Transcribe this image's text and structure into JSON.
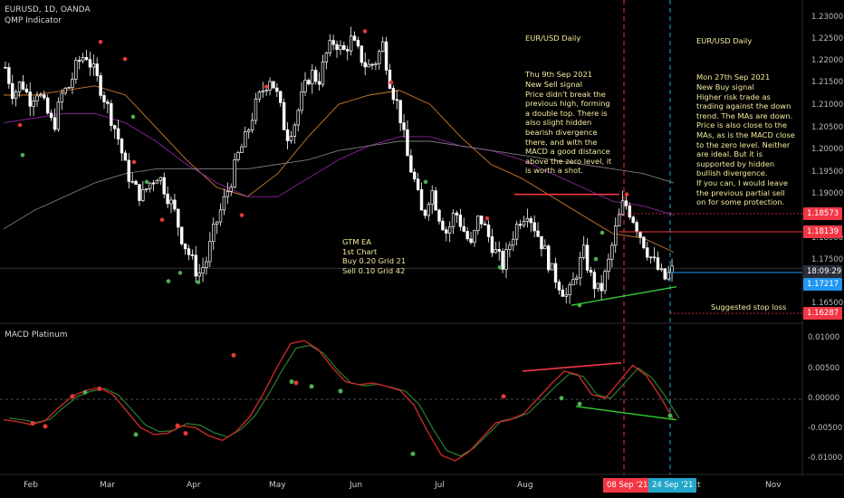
{
  "header": {
    "symbol_line": "EURUSD, 1D, OANDA",
    "indicator": "QMP Indicator"
  },
  "macd_panel_title": "MACD Platinum",
  "notes": [
    {
      "title": "EUR/USD Daily",
      "body": "Thu 9th Sep 2021\nNew Sell signal\nPrice didn't break the previous high, forming a double top. There is also slight hidden bearish divergence there, and with the MACD a good distance above the zero level, it is worth a shot."
    },
    {
      "title": "EUR/USD Daily",
      "body": "Mon 27th Sep 2021\nNew Buy signal\nHigher risk trade as trading against the down trend. The MAs are down. Price is also close to the MAs, as is the MACD close to the zero level. Neither are ideal. But it is supported by hidden bullish divergence.\nIf you can, I would leave the previous partial sell on for some protection."
    }
  ],
  "ea_note": "GTM EA\n1st Chart\nBuy 0.20 Grid 21\nSell 0.10 Grid 42",
  "stop_note": "Suggested stop loss",
  "price_axis": [
    "1.23000",
    "1.22500",
    "1.22000",
    "1.21500",
    "1.21000",
    "1.20500",
    "1.20000",
    "1.19500",
    "1.19000",
    "1.18500",
    "1.18000",
    "1.17500",
    "1.17000",
    "1.16500"
  ],
  "macd_axis": [
    "0.01000",
    "0.00500",
    "0.00000",
    "-0.00500",
    "-0.01000"
  ],
  "price_tags": [
    {
      "label": "1.18573",
      "color": "#f23645"
    },
    {
      "label": "1.18139",
      "color": "#f23645"
    },
    {
      "label": "18:09:29",
      "color": "#2a2e39"
    },
    {
      "label": "1.17217",
      "color": "#2196f3"
    },
    {
      "label": "1.16287",
      "color": "#f23645"
    }
  ],
  "x_axis": [
    "Feb",
    "Mar",
    "Apr",
    "May",
    "Jun",
    "Jul",
    "Aug",
    "Oct",
    "Nov"
  ],
  "date_tags": [
    {
      "label": "08 Sep '21",
      "color": "#f23645"
    },
    {
      "label": "24 Sep '21",
      "color": "#22a6c9"
    }
  ],
  "chart_data": {
    "type": "candlestick",
    "symbol": "EURUSD",
    "timeframe": "1D",
    "x_range": [
      "2021-01-18",
      "2021-11-15"
    ],
    "ylim": [
      1.163,
      1.231
    ],
    "close_path": [
      1.218,
      1.212,
      1.215,
      1.211,
      1.213,
      1.209,
      1.205,
      1.212,
      1.214,
      1.219,
      1.221,
      1.217,
      1.213,
      1.208,
      1.203,
      1.196,
      1.192,
      1.19,
      1.193,
      1.195,
      1.191,
      1.187,
      1.181,
      1.177,
      1.173,
      1.176,
      1.183,
      1.188,
      1.193,
      1.199,
      1.203,
      1.209,
      1.213,
      1.216,
      1.211,
      1.203,
      1.206,
      1.212,
      1.217,
      1.215,
      1.221,
      1.224,
      1.221,
      1.224,
      1.221,
      1.218,
      1.219,
      1.223,
      1.214,
      1.209,
      1.199,
      1.193,
      1.185,
      1.192,
      1.186,
      1.182,
      1.187,
      1.183,
      1.179,
      1.186,
      1.182,
      1.178,
      1.175,
      1.181,
      1.185,
      1.187,
      1.183,
      1.179,
      1.174,
      1.171,
      1.168,
      1.173,
      1.178,
      1.172,
      1.169,
      1.175,
      1.183,
      1.189,
      1.186,
      1.182,
      1.178,
      1.175,
      1.172,
      1.174
    ],
    "ma_series": [
      {
        "color": "#e68a2e",
        "values": [
          1.212,
          1.212,
          1.213,
          1.214,
          1.212,
          1.205,
          1.198,
          1.192,
          1.19,
          1.195,
          1.203,
          1.21,
          1.212,
          1.213,
          1.21,
          1.203,
          1.197,
          1.194,
          1.19,
          1.186,
          1.182,
          1.181,
          1.178
        ]
      },
      {
        "color": "#9c27b0",
        "values": [
          1.206,
          1.207,
          1.208,
          1.208,
          1.206,
          1.202,
          1.197,
          1.193,
          1.19,
          1.19,
          1.194,
          1.198,
          1.201,
          1.203,
          1.203,
          1.201,
          1.2,
          1.198,
          1.195,
          1.192,
          1.189,
          1.188,
          1.186
        ]
      },
      {
        "color": "#888888",
        "values": [
          1.183,
          1.187,
          1.19,
          1.193,
          1.195,
          1.196,
          1.196,
          1.196,
          1.196,
          1.197,
          1.198,
          1.2,
          1.201,
          1.202,
          1.202,
          1.201,
          1.2,
          1.199,
          1.198,
          1.197,
          1.196,
          1.195,
          1.193
        ]
      }
    ],
    "annotations": {
      "resistance_line": 1.1905,
      "support_line_start": 1.1665,
      "support_line_end": 1.1705,
      "stop_loss": 1.16287,
      "current_price": 1.17217
    },
    "macd": {
      "ylim": [
        -0.0125,
        0.0125
      ],
      "values": [
        -0.0035,
        -0.0038,
        -0.0043,
        -0.0037,
        -0.0015,
        0.0005,
        0.0015,
        0.002,
        0.0008,
        -0.002,
        -0.0048,
        -0.006,
        -0.0058,
        -0.0045,
        -0.0048,
        -0.0062,
        -0.007,
        -0.0055,
        -0.003,
        0.001,
        0.0055,
        0.0095,
        0.01,
        0.0085,
        0.0055,
        0.003,
        0.0025,
        0.0028,
        0.0022,
        0.0015,
        -0.001,
        -0.0055,
        -0.0095,
        -0.0105,
        -0.009,
        -0.0065,
        -0.004,
        -0.0035,
        -0.0025,
        0.0,
        0.0025,
        0.0048,
        0.0042,
        0.0008,
        0.0002,
        0.003,
        0.0058,
        0.004,
        0.0005,
        -0.0035
      ]
    }
  }
}
